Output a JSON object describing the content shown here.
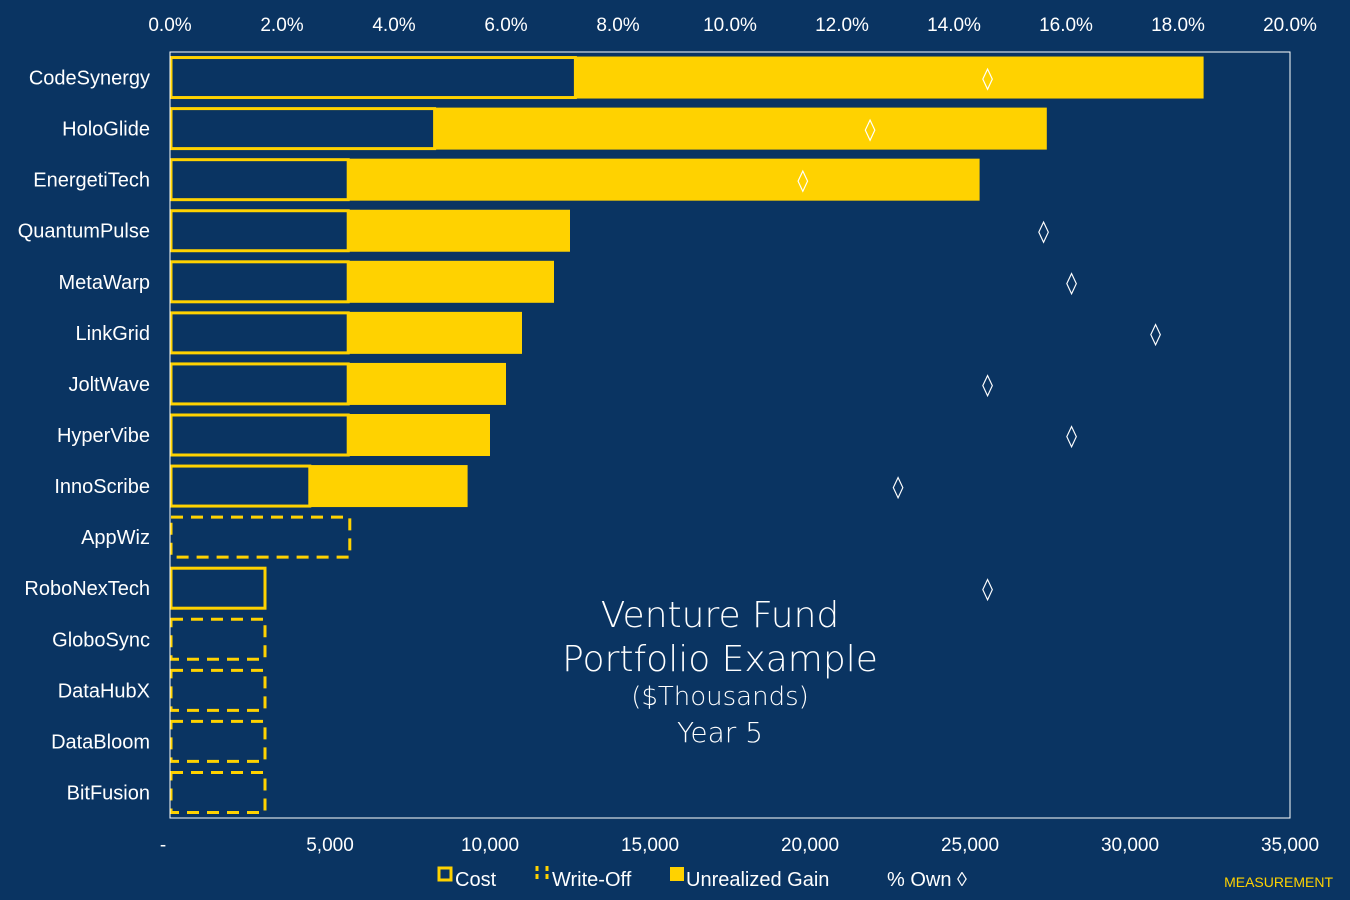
{
  "colors": {
    "background": "#0a3462",
    "gold": "#ffd200",
    "marker": "#ffffff"
  },
  "chart_data": {
    "type": "bar",
    "orientation": "horizontal",
    "stacked": true,
    "title_lines": [
      "Venture Fund",
      "Portfolio Example",
      "($Thousands)",
      "Year 5"
    ],
    "categories": [
      "CodeSynergy",
      "HoloGlide",
      "EnergetiTech",
      "QuantumPulse",
      "MetaWarp",
      "LinkGrid",
      "JoltWave",
      "HyperVibe",
      "InnoScribe",
      "AppWiz",
      "RoboNexTech",
      "GloboSync",
      "DataHubX",
      "DataBloom",
      "BitFusion"
    ],
    "series": [
      {
        "name": "Cost",
        "style": "outline-solid",
        "values": [
          12700,
          8300,
          5600,
          5600,
          5600,
          5600,
          5600,
          5600,
          4400,
          0,
          3000,
          0,
          0,
          0,
          0
        ]
      },
      {
        "name": "Write-Off",
        "style": "outline-dashed",
        "values": [
          0,
          0,
          0,
          0,
          0,
          0,
          0,
          0,
          0,
          5650,
          0,
          3000,
          3000,
          3000,
          3000
        ]
      },
      {
        "name": "Unrealized Gain",
        "style": "filled",
        "values": [
          19600,
          19100,
          19700,
          6900,
          6400,
          5400,
          4900,
          4400,
          4900,
          0,
          0,
          0,
          0,
          0,
          0
        ]
      },
      {
        "name": "% Own",
        "marker": "◊",
        "axis": "top",
        "values": [
          14.6,
          12.5,
          11.3,
          15.6,
          16.1,
          17.6,
          14.6,
          16.1,
          13.0,
          null,
          14.6,
          null,
          null,
          null,
          null
        ]
      }
    ],
    "x_axis": {
      "ticks": [
        0,
        5000,
        10000,
        15000,
        20000,
        25000,
        30000,
        35000
      ],
      "tick_labels": [
        "-",
        "5,000",
        "10,000",
        "15,000",
        "20,000",
        "25,000",
        "30,000",
        "35,000"
      ],
      "xlim": [
        0,
        35000
      ]
    },
    "x2_axis": {
      "ticks": [
        0,
        2,
        4,
        6,
        8,
        10,
        12,
        14,
        16,
        18,
        20
      ],
      "tick_labels": [
        "0.0%",
        "2.0%",
        "4.0%",
        "6.0%",
        "8.0%",
        "10.0%",
        "12.0%",
        "14.0%",
        "16.0%",
        "18.0%",
        "20.0%"
      ],
      "xlim": [
        0,
        20
      ]
    },
    "legend": {
      "position": "bottom",
      "items": [
        {
          "label": "Cost",
          "symbol": "outline-solid"
        },
        {
          "label": "Write-Off",
          "symbol": "outline-dashed"
        },
        {
          "label": "Unrealized Gain",
          "symbol": "filled"
        },
        {
          "label": "% Own",
          "symbol": "◊"
        }
      ]
    }
  },
  "watermark": "MEASUREMENT"
}
